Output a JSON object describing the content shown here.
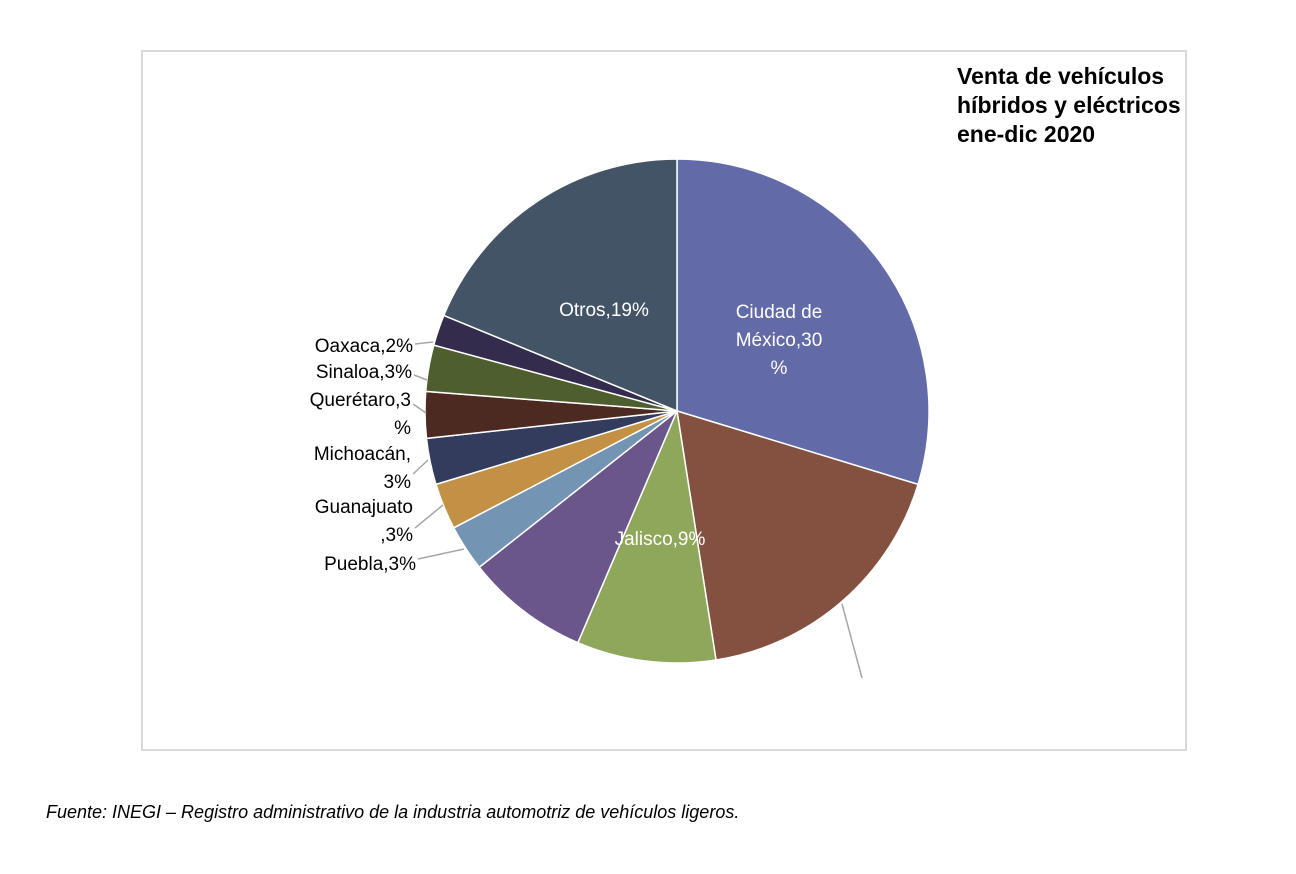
{
  "chart_data": {
    "type": "pie",
    "title": [
      "Venta de vehículos",
      "híbridos y eléctricos",
      "ene-dic 2020"
    ],
    "slices": [
      {
        "label": "Ciudad de México",
        "value": 30,
        "label_lines": [
          "Ciudad de",
          "México,30",
          "%"
        ],
        "color": "#626aa8",
        "text_color": "#ffffff"
      },
      {
        "label": "(sin etiqueta visible)",
        "value": 18,
        "label_lines": [],
        "color": "#845040",
        "text_color": "#000000"
      },
      {
        "label": "Jalisco",
        "value": 9,
        "label_lines": [
          "Jalisco,9%"
        ],
        "color": "#8fa75a",
        "text_color": "#ffffff"
      },
      {
        "label": "(sin etiqueta visible)",
        "value": 8,
        "label_lines": [],
        "color": "#6a568a",
        "text_color": "#000000"
      },
      {
        "label": "Puebla",
        "value": 3,
        "label_lines": [
          "Puebla,3%"
        ],
        "color": "#7494b4",
        "text_color": "#000000"
      },
      {
        "label": "Guanajuato",
        "value": 3,
        "label_lines": [
          "Guanajuato",
          ",3%"
        ],
        "color": "#c39146",
        "text_color": "#000000"
      },
      {
        "label": "Michoacán",
        "value": 3,
        "label_lines": [
          "Michoacán,",
          "3%"
        ],
        "color": "#343c5e",
        "text_color": "#000000"
      },
      {
        "label": "Querétaro",
        "value": 3,
        "label_lines": [
          "Querétaro,3",
          "%"
        ],
        "color": "#4c2a22",
        "text_color": "#000000"
      },
      {
        "label": "Sinaloa",
        "value": 3,
        "label_lines": [
          "Sinaloa,3%"
        ],
        "color": "#4e5e2e",
        "text_color": "#000000"
      },
      {
        "label": "Oaxaca",
        "value": 2,
        "label_lines": [
          "Oaxaca,2%"
        ],
        "color": "#342c4c",
        "text_color": "#000000"
      },
      {
        "label": "Otros",
        "value": 19,
        "label_lines": [
          "Otros,19%"
        ],
        "color": "#435466",
        "text_color": "#ffffff"
      }
    ]
  },
  "source_note": "Fuente: INEGI – Registro administrativo de la industria automotriz de vehículos ligeros."
}
